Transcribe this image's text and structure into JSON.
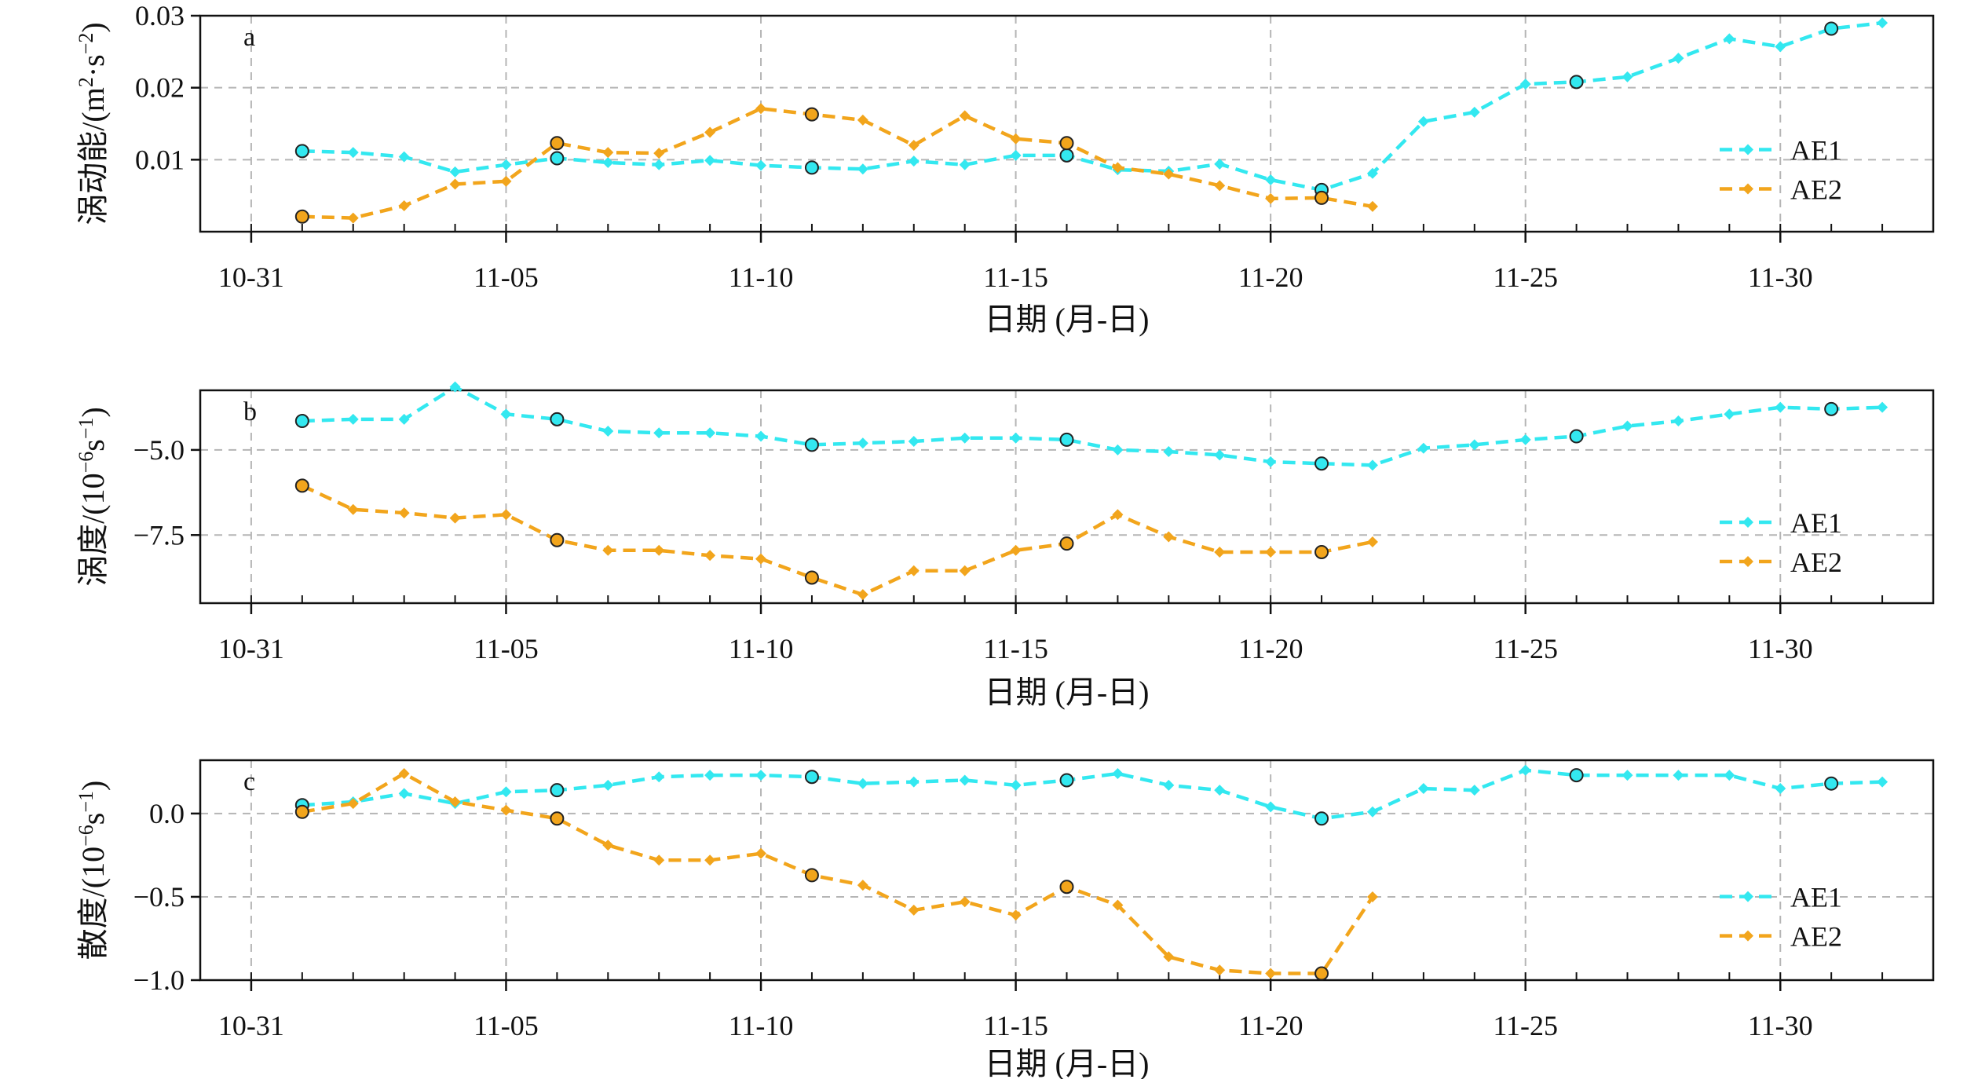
{
  "colors": {
    "AE1": "#33e8f0",
    "AE2": "#f2a51c",
    "grid": "#b5b5b5",
    "axis": "#111111",
    "marker_edge": "#222222"
  },
  "x_ticks": [
    "10-31",
    "11-05",
    "11-10",
    "11-15",
    "11-20",
    "11-25",
    "11-30"
  ],
  "xlabel": "日期 (月-日)",
  "panels": [
    {
      "label": "a",
      "ylabel_main": "涡动能/(m",
      "ylabel_sup1": "2",
      "ylabel_mid": "·s",
      "ylabel_sup2": "−2",
      "ylabel_end": ")",
      "legend": [
        "AE1",
        "AE2"
      ]
    },
    {
      "label": "b",
      "ylabel_main": "涡度/(10",
      "ylabel_sup1": "−6",
      "ylabel_mid": "s",
      "ylabel_sup2": "−1",
      "ylabel_end": ")",
      "legend": [
        "AE1",
        "AE2"
      ]
    },
    {
      "label": "c",
      "ylabel_main": "散度/(10",
      "ylabel_sup1": "−6",
      "ylabel_mid": "s",
      "ylabel_sup2": "−1",
      "ylabel_end": ")",
      "legend": [
        "AE1",
        "AE2"
      ]
    }
  ],
  "chart_data": [
    {
      "type": "line",
      "label": "a",
      "xlabel": "日期 (月-日)",
      "ylabel": "涡动能/(m²·s⁻²)",
      "x_ticks": [
        "10-31",
        "11-05",
        "11-10",
        "11-15",
        "11-20",
        "11-25",
        "11-30"
      ],
      "xlim": [
        "10-30",
        "11-34"
      ],
      "ylim": [
        0.0,
        0.03
      ],
      "yticks": [
        0.01,
        0.02,
        0.03
      ],
      "ytick_labels": [
        "0.01",
        "0.02",
        "0.03"
      ],
      "grid": true,
      "legend_position": "right",
      "series": [
        {
          "name": "AE1",
          "x": [
            "11-01",
            "11-02",
            "11-03",
            "11-04",
            "11-05",
            "11-06",
            "11-07",
            "11-08",
            "11-09",
            "11-10",
            "11-11",
            "11-12",
            "11-13",
            "11-14",
            "11-15",
            "11-16",
            "11-17",
            "11-18",
            "11-19",
            "11-20",
            "11-21",
            "11-22",
            "11-23",
            "11-24",
            "11-25",
            "11-26",
            "11-27",
            "11-28",
            "11-29",
            "11-30",
            "11-31",
            "11-32"
          ],
          "y": [
            0.0112,
            0.011,
            0.0104,
            0.0083,
            0.0093,
            0.0102,
            0.0096,
            0.0093,
            0.0099,
            0.0092,
            0.0089,
            0.0087,
            0.0098,
            0.0093,
            0.0106,
            0.0106,
            0.0086,
            0.0084,
            0.0094,
            0.0072,
            0.0058,
            0.0081,
            0.0153,
            0.0166,
            0.0205,
            0.0208,
            0.0215,
            0.0241,
            0.0268,
            0.0257,
            0.0282,
            0.029
          ],
          "highlighted_x": [
            "11-01",
            "11-06",
            "11-11",
            "11-16",
            "11-21",
            "11-26",
            "11-31"
          ]
        },
        {
          "name": "AE2",
          "x": [
            "11-01",
            "11-02",
            "11-03",
            "11-04",
            "11-05",
            "11-06",
            "11-07",
            "11-08",
            "11-09",
            "11-10",
            "11-11",
            "11-12",
            "11-13",
            "11-14",
            "11-15",
            "11-16",
            "11-17",
            "11-18",
            "11-19",
            "11-20",
            "11-21",
            "11-22"
          ],
          "y": [
            0.0021,
            0.0019,
            0.0036,
            0.0066,
            0.007,
            0.0123,
            0.011,
            0.0109,
            0.0138,
            0.0171,
            0.0163,
            0.0155,
            0.012,
            0.0161,
            0.0129,
            0.0123,
            0.0089,
            0.008,
            0.0064,
            0.0046,
            0.0047,
            0.0035
          ],
          "highlighted_x": [
            "11-01",
            "11-06",
            "11-11",
            "11-16",
            "11-21"
          ]
        }
      ]
    },
    {
      "type": "line",
      "label": "b",
      "xlabel": "日期 (月-日)",
      "ylabel": "涡度/(10⁻⁶s⁻¹)",
      "x_ticks": [
        "10-31",
        "11-05",
        "11-10",
        "11-15",
        "11-20",
        "11-25",
        "11-30"
      ],
      "xlim": [
        "10-30",
        "11-34"
      ],
      "ylim": [
        -9.5,
        -3.25
      ],
      "yticks": [
        -5.0,
        -7.5
      ],
      "ytick_labels": [
        "−5.0",
        "−7.5"
      ],
      "grid": true,
      "legend_position": "right",
      "series": [
        {
          "name": "AE1",
          "x": [
            "11-01",
            "11-02",
            "11-03",
            "11-04",
            "11-05",
            "11-06",
            "11-07",
            "11-08",
            "11-09",
            "11-10",
            "11-11",
            "11-12",
            "11-13",
            "11-14",
            "11-15",
            "11-16",
            "11-17",
            "11-18",
            "11-19",
            "11-20",
            "11-21",
            "11-22",
            "11-23",
            "11-24",
            "11-25",
            "11-26",
            "11-27",
            "11-28",
            "11-29",
            "11-30",
            "11-31",
            "11-32"
          ],
          "y": [
            -4.15,
            -4.1,
            -4.1,
            -3.15,
            -3.95,
            -4.1,
            -4.45,
            -4.5,
            -4.5,
            -4.6,
            -4.85,
            -4.8,
            -4.75,
            -4.65,
            -4.65,
            -4.7,
            -5.0,
            -5.05,
            -5.15,
            -5.35,
            -5.4,
            -5.45,
            -4.95,
            -4.85,
            -4.7,
            -4.6,
            -4.3,
            -4.15,
            -3.95,
            -3.75,
            -3.8,
            -3.75
          ],
          "highlighted_x": [
            "11-01",
            "11-06",
            "11-11",
            "11-16",
            "11-21",
            "11-26",
            "11-31"
          ]
        },
        {
          "name": "AE2",
          "x": [
            "11-01",
            "11-02",
            "11-03",
            "11-04",
            "11-05",
            "11-06",
            "11-07",
            "11-08",
            "11-09",
            "11-10",
            "11-11",
            "11-12",
            "11-13",
            "11-14",
            "11-15",
            "11-16",
            "11-17",
            "11-18",
            "11-19",
            "11-20",
            "11-21",
            "11-22"
          ],
          "y": [
            -6.05,
            -6.75,
            -6.85,
            -7.0,
            -6.9,
            -7.65,
            -7.95,
            -7.95,
            -8.1,
            -8.2,
            -8.75,
            -9.25,
            -8.55,
            -8.55,
            -7.95,
            -7.75,
            -6.9,
            -7.55,
            -8.0,
            -8.0,
            -8.0,
            -7.7
          ],
          "highlighted_x": [
            "11-01",
            "11-06",
            "11-11",
            "11-16",
            "11-21"
          ]
        }
      ]
    },
    {
      "type": "line",
      "label": "c",
      "xlabel": "日期 (月-日)",
      "ylabel": "散度/(10⁻⁶s⁻¹)",
      "x_ticks": [
        "10-31",
        "11-05",
        "11-10",
        "11-15",
        "11-20",
        "11-25",
        "11-30"
      ],
      "xlim": [
        "10-30",
        "11-34"
      ],
      "ylim": [
        -1.0,
        0.32
      ],
      "yticks": [
        0.0,
        -0.5,
        -1.0
      ],
      "ytick_labels": [
        "0.0",
        "−0.5",
        "−1.0"
      ],
      "grid": true,
      "legend_position": "right",
      "series": [
        {
          "name": "AE1",
          "x": [
            "11-01",
            "11-02",
            "11-03",
            "11-04",
            "11-05",
            "11-06",
            "11-07",
            "11-08",
            "11-09",
            "11-10",
            "11-11",
            "11-12",
            "11-13",
            "11-14",
            "11-15",
            "11-16",
            "11-17",
            "11-18",
            "11-19",
            "11-20",
            "11-21",
            "11-22",
            "11-23",
            "11-24",
            "11-25",
            "11-26",
            "11-27",
            "11-28",
            "11-29",
            "11-30",
            "11-31",
            "11-32"
          ],
          "y": [
            0.05,
            0.07,
            0.12,
            0.06,
            0.13,
            0.14,
            0.17,
            0.22,
            0.23,
            0.23,
            0.22,
            0.18,
            0.19,
            0.2,
            0.17,
            0.2,
            0.24,
            0.17,
            0.14,
            0.04,
            -0.03,
            0.01,
            0.15,
            0.14,
            0.26,
            0.23,
            0.23,
            0.23,
            0.23,
            0.15,
            0.18,
            0.19
          ],
          "highlighted_x": [
            "11-01",
            "11-06",
            "11-11",
            "11-16",
            "11-21",
            "11-26",
            "11-31"
          ]
        },
        {
          "name": "AE2",
          "x": [
            "11-01",
            "11-02",
            "11-03",
            "11-04",
            "11-05",
            "11-06",
            "11-07",
            "11-08",
            "11-09",
            "11-10",
            "11-11",
            "11-12",
            "11-13",
            "11-14",
            "11-15",
            "11-16",
            "11-17",
            "11-18",
            "11-19",
            "11-20",
            "11-21",
            "11-22"
          ],
          "y": [
            0.01,
            0.06,
            0.24,
            0.07,
            0.02,
            -0.03,
            -0.19,
            -0.28,
            -0.28,
            -0.24,
            -0.37,
            -0.43,
            -0.58,
            -0.53,
            -0.61,
            -0.44,
            -0.55,
            -0.86,
            -0.94,
            -0.96,
            -0.96,
            -0.5
          ],
          "highlighted_x": [
            "11-01",
            "11-06",
            "11-11",
            "11-16",
            "11-21"
          ]
        }
      ]
    }
  ]
}
